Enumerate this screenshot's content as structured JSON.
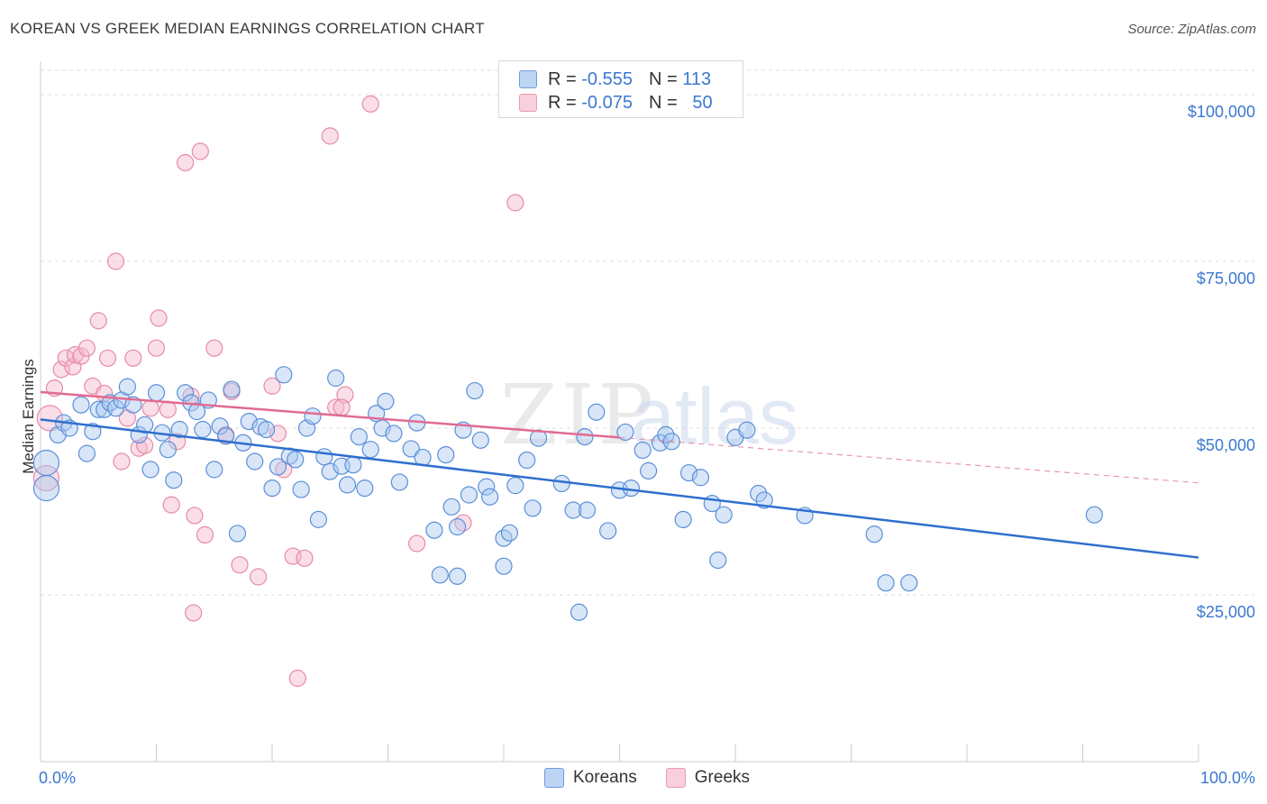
{
  "header": {
    "title": "KOREAN VS GREEK MEDIAN EARNINGS CORRELATION CHART",
    "source": "Source: ZipAtlas.com"
  },
  "legend": {
    "series": [
      {
        "r_label": "R =",
        "r_value": "-0.555",
        "n_label": "N =",
        "n_value": "113"
      },
      {
        "r_label": "R =",
        "r_value": "-0.075",
        "n_label": "N =",
        "n_value": "50"
      }
    ]
  },
  "watermark": {
    "zip": "ZIP",
    "atlas": "atlas"
  },
  "colors": {
    "koreans_fill": "#a9c7ef",
    "koreans_stroke": "#5b8fd8",
    "koreans_line": "#2f6fce",
    "greeks_fill": "#f5b8cc",
    "greeks_stroke": "#e88aa8",
    "greeks_line": "#e06b92",
    "tick": "#3b78d0",
    "grid": "#dddddd"
  },
  "chart_data": {
    "type": "scatter",
    "title": "KOREAN VS GREEK MEDIAN EARNINGS CORRELATION CHART",
    "xlabel": "",
    "ylabel": "Median Earnings",
    "xlim": [
      0,
      100
    ],
    "ylim": [
      0,
      105000
    ],
    "x_ticks": [
      {
        "value": 0,
        "label": "0.0%"
      },
      {
        "value": 100,
        "label": "100.0%"
      }
    ],
    "y_ticks": [
      {
        "value": 25000,
        "label": "$25,000"
      },
      {
        "value": 50000,
        "label": "$50,000"
      },
      {
        "value": 75000,
        "label": "$75,000"
      },
      {
        "value": 100000,
        "label": "$100,000"
      }
    ],
    "grid": true,
    "legend_position": "top-center",
    "series": [
      {
        "name": "Koreans",
        "r": -0.555,
        "n": 113,
        "trend": {
          "x": [
            0,
            100
          ],
          "y": [
            51300,
            30600
          ],
          "dashed_from": null
        },
        "points": [
          [
            0.5,
            44800
          ],
          [
            0.5,
            41000
          ],
          [
            1.5,
            49000
          ],
          [
            2,
            50800
          ],
          [
            2.5,
            50000
          ],
          [
            3.5,
            53500
          ],
          [
            4,
            46200
          ],
          [
            4.5,
            49500
          ],
          [
            5,
            52800
          ],
          [
            5.5,
            52800
          ],
          [
            6,
            53800
          ],
          [
            6.5,
            53000
          ],
          [
            7,
            54200
          ],
          [
            7.5,
            56200
          ],
          [
            8,
            53500
          ],
          [
            8.5,
            49000
          ],
          [
            9,
            50500
          ],
          [
            9.5,
            43800
          ],
          [
            10,
            55300
          ],
          [
            10.5,
            49300
          ],
          [
            11,
            46800
          ],
          [
            11.5,
            42200
          ],
          [
            12,
            49800
          ],
          [
            12.5,
            55300
          ],
          [
            13,
            53800
          ],
          [
            13.5,
            52500
          ],
          [
            14,
            49800
          ],
          [
            14.5,
            54200
          ],
          [
            15,
            43800
          ],
          [
            15.5,
            50300
          ],
          [
            16,
            48800
          ],
          [
            16.5,
            55800
          ],
          [
            17,
            34200
          ],
          [
            17.5,
            47800
          ],
          [
            18,
            51000
          ],
          [
            18.5,
            45000
          ],
          [
            19,
            50200
          ],
          [
            19.5,
            49800
          ],
          [
            20,
            41000
          ],
          [
            20.5,
            44200
          ],
          [
            21,
            58000
          ],
          [
            21.5,
            45800
          ],
          [
            22,
            45300
          ],
          [
            22.5,
            40800
          ],
          [
            23,
            50000
          ],
          [
            23.5,
            51800
          ],
          [
            24,
            36300
          ],
          [
            24.5,
            45700
          ],
          [
            25,
            43500
          ],
          [
            25.5,
            57500
          ],
          [
            26,
            44300
          ],
          [
            26.5,
            41500
          ],
          [
            27,
            44500
          ],
          [
            27.5,
            48700
          ],
          [
            28,
            41000
          ],
          [
            28.5,
            46800
          ],
          [
            29,
            52200
          ],
          [
            29.5,
            50000
          ],
          [
            29.8,
            54000
          ],
          [
            30.5,
            49200
          ],
          [
            31,
            41900
          ],
          [
            32,
            46900
          ],
          [
            32.5,
            50800
          ],
          [
            33,
            45600
          ],
          [
            34,
            34700
          ],
          [
            34.5,
            28000
          ],
          [
            35,
            46000
          ],
          [
            35.5,
            38200
          ],
          [
            36,
            35200
          ],
          [
            36.5,
            49700
          ],
          [
            37,
            40000
          ],
          [
            37.5,
            55600
          ],
          [
            38,
            48200
          ],
          [
            38.5,
            41200
          ],
          [
            38.8,
            39700
          ],
          [
            40,
            33500
          ],
          [
            40.5,
            34300
          ],
          [
            40,
            29300
          ],
          [
            41,
            41400
          ],
          [
            42,
            45200
          ],
          [
            42.5,
            38000
          ],
          [
            43,
            48500
          ],
          [
            45,
            41700
          ],
          [
            46,
            37700
          ],
          [
            47,
            48700
          ],
          [
            47.2,
            37700
          ],
          [
            48,
            52400
          ],
          [
            49,
            34600
          ],
          [
            50,
            40700
          ],
          [
            50.5,
            49400
          ],
          [
            51,
            41000
          ],
          [
            52,
            46700
          ],
          [
            52.5,
            43600
          ],
          [
            53.5,
            47800
          ],
          [
            54,
            49000
          ],
          [
            54.5,
            48000
          ],
          [
            55.5,
            36300
          ],
          [
            56,
            43300
          ],
          [
            57,
            42600
          ],
          [
            58,
            38700
          ],
          [
            58.5,
            30200
          ],
          [
            59,
            37000
          ],
          [
            60,
            48600
          ],
          [
            61,
            49700
          ],
          [
            62,
            40200
          ],
          [
            62.5,
            39200
          ],
          [
            66,
            36900
          ],
          [
            72,
            34100
          ],
          [
            73,
            26800
          ],
          [
            75,
            26800
          ],
          [
            91,
            37000
          ],
          [
            46.5,
            22400
          ],
          [
            36,
            27800
          ]
        ]
      },
      {
        "name": "Greeks",
        "r": -0.075,
        "n": 50,
        "trend": {
          "x": [
            0,
            100
          ],
          "y": [
            55400,
            41800
          ],
          "dashed_from": 50
        },
        "points": [
          [
            0.5,
            42500
          ],
          [
            0.8,
            51500
          ],
          [
            1.2,
            56000
          ],
          [
            1.8,
            58800
          ],
          [
            2.2,
            60500
          ],
          [
            2.8,
            59200
          ],
          [
            3,
            61000
          ],
          [
            3.5,
            60800
          ],
          [
            4,
            62000
          ],
          [
            4.5,
            56300
          ],
          [
            5,
            66100
          ],
          [
            5.5,
            55200
          ],
          [
            5.8,
            60500
          ],
          [
            6.5,
            75000
          ],
          [
            7,
            45000
          ],
          [
            7.5,
            51500
          ],
          [
            8,
            60500
          ],
          [
            8.5,
            47000
          ],
          [
            9,
            47400
          ],
          [
            9.5,
            53000
          ],
          [
            10,
            62000
          ],
          [
            10.2,
            66500
          ],
          [
            11,
            52800
          ],
          [
            11.3,
            38500
          ],
          [
            11.8,
            48000
          ],
          [
            12.5,
            89800
          ],
          [
            13,
            54800
          ],
          [
            13.2,
            22300
          ],
          [
            13.3,
            36900
          ],
          [
            13.8,
            91500
          ],
          [
            14.2,
            34000
          ],
          [
            15,
            62000
          ],
          [
            16,
            49000
          ],
          [
            16.5,
            55500
          ],
          [
            17.2,
            29500
          ],
          [
            18.8,
            27700
          ],
          [
            20,
            56300
          ],
          [
            20.5,
            49200
          ],
          [
            21,
            43800
          ],
          [
            21.8,
            30800
          ],
          [
            22.2,
            12500
          ],
          [
            22.8,
            30500
          ],
          [
            25,
            93800
          ],
          [
            25.5,
            53100
          ],
          [
            26.3,
            55000
          ],
          [
            28.5,
            98600
          ],
          [
            32.5,
            32700
          ],
          [
            36.5,
            35800
          ],
          [
            41,
            83800
          ],
          [
            26,
            53100
          ]
        ]
      }
    ]
  }
}
